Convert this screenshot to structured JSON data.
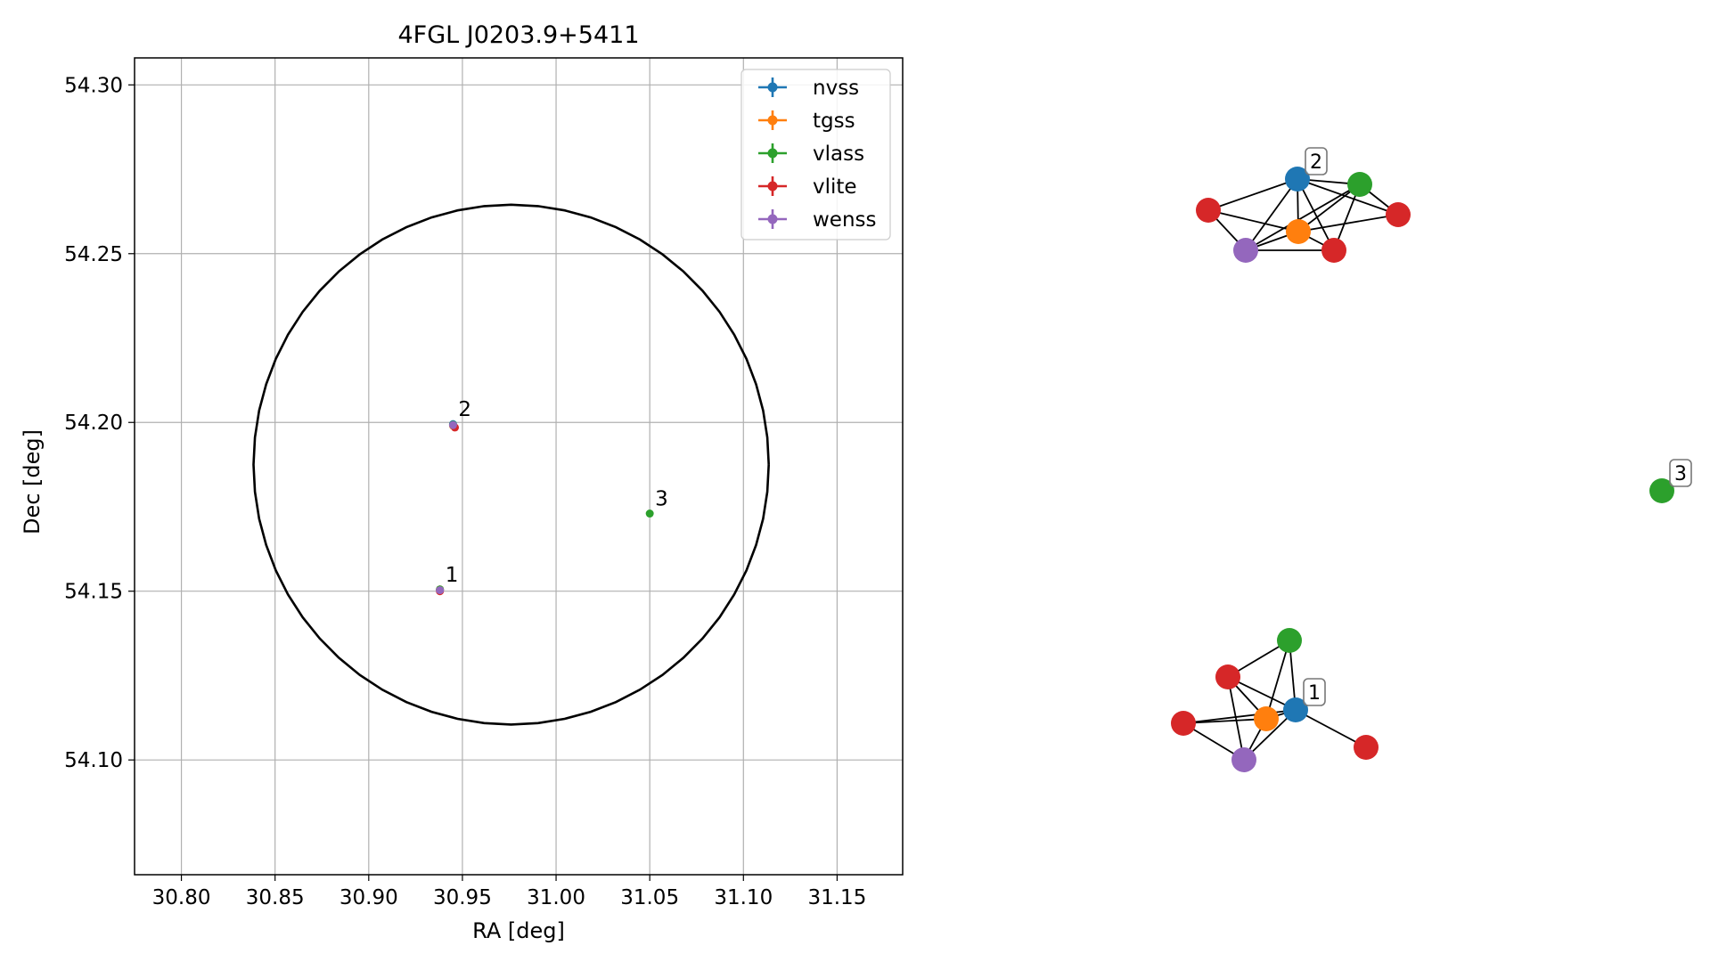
{
  "chart_data": [
    {
      "type": "scatter",
      "title": "4FGL J0203.9+5411",
      "xlabel": "RA [deg]",
      "ylabel": "Dec [deg]",
      "xlim": [
        30.775,
        31.185
      ],
      "ylim": [
        54.066,
        54.308
      ],
      "xticks": [
        "30.80",
        "30.85",
        "30.90",
        "30.95",
        "31.00",
        "31.05",
        "31.10",
        "31.15"
      ],
      "yticks": [
        "54.10",
        "54.15",
        "54.20",
        "54.25",
        "54.30"
      ],
      "grid": true,
      "legend_position": "top-right",
      "ellipse": {
        "center_ra": 30.976,
        "center_dec": 54.1875,
        "radius_ra": 0.1375,
        "radius_dec": 0.077,
        "color": "#000000"
      },
      "series": [
        {
          "name": "nvss",
          "color": "#1f77b4",
          "points": [
            {
              "x": 30.938,
              "y": 54.1505
            },
            {
              "x": 30.945,
              "y": 54.1995
            }
          ]
        },
        {
          "name": "tgss",
          "color": "#ff7f0e",
          "points": [
            {
              "x": 30.938,
              "y": 54.1505
            },
            {
              "x": 30.945,
              "y": 54.199
            }
          ]
        },
        {
          "name": "vlass",
          "color": "#2ca02c",
          "points": [
            {
              "x": 30.938,
              "y": 54.1505
            },
            {
              "x": 30.945,
              "y": 54.1993
            },
            {
              "x": 31.05,
              "y": 54.173
            }
          ]
        },
        {
          "name": "vlite",
          "color": "#d62728",
          "points": [
            {
              "x": 30.938,
              "y": 54.15
            },
            {
              "x": 30.946,
              "y": 54.1985
            }
          ]
        },
        {
          "name": "wenss",
          "color": "#9467bd",
          "points": [
            {
              "x": 30.938,
              "y": 54.1503
            },
            {
              "x": 30.945,
              "y": 54.1992
            }
          ]
        }
      ],
      "annotations": [
        {
          "text": "1",
          "x": 30.938,
          "y": 54.1505
        },
        {
          "text": "2",
          "x": 30.945,
          "y": 54.1995
        },
        {
          "text": "3",
          "x": 31.05,
          "y": 54.173
        }
      ]
    },
    {
      "type": "network",
      "nodes": [
        {
          "id": "g2-nvss",
          "color": "#1f77b4"
        },
        {
          "id": "g2-vlass",
          "color": "#2ca02c"
        },
        {
          "id": "g2-vlite-a",
          "color": "#d62728"
        },
        {
          "id": "g2-vlite-b",
          "color": "#d62728"
        },
        {
          "id": "g2-tgss",
          "color": "#ff7f0e"
        },
        {
          "id": "g2-wenss",
          "color": "#9467bd"
        },
        {
          "id": "g2-vlite-c",
          "color": "#d62728"
        },
        {
          "id": "g3-vlass",
          "color": "#2ca02c"
        },
        {
          "id": "g1-vlass",
          "color": "#2ca02c"
        },
        {
          "id": "g1-vlite-a",
          "color": "#d62728"
        },
        {
          "id": "g1-nvss",
          "color": "#1f77b4"
        },
        {
          "id": "g1-tgss",
          "color": "#ff7f0e"
        },
        {
          "id": "g1-vlite-b",
          "color": "#d62728"
        },
        {
          "id": "g1-wenss",
          "color": "#9467bd"
        },
        {
          "id": "g1-vlite-c",
          "color": "#d62728"
        }
      ],
      "edges": [
        [
          "g2-nvss",
          "g2-vlass"
        ],
        [
          "g2-nvss",
          "g2-vlite-a"
        ],
        [
          "g2-nvss",
          "g2-vlite-b"
        ],
        [
          "g2-nvss",
          "g2-tgss"
        ],
        [
          "g2-nvss",
          "g2-wenss"
        ],
        [
          "g2-nvss",
          "g2-vlite-c"
        ],
        [
          "g2-vlass",
          "g2-vlite-b"
        ],
        [
          "g2-vlass",
          "g2-tgss"
        ],
        [
          "g2-vlass",
          "g2-wenss"
        ],
        [
          "g2-vlass",
          "g2-vlite-c"
        ],
        [
          "g2-vlite-a",
          "g2-tgss"
        ],
        [
          "g2-vlite-a",
          "g2-wenss"
        ],
        [
          "g2-vlite-b",
          "g2-tgss"
        ],
        [
          "g2-tgss",
          "g2-wenss"
        ],
        [
          "g2-tgss",
          "g2-vlite-c"
        ],
        [
          "g2-wenss",
          "g2-vlite-c"
        ],
        [
          "g1-vlass",
          "g1-vlite-a"
        ],
        [
          "g1-vlass",
          "g1-nvss"
        ],
        [
          "g1-vlass",
          "g1-tgss"
        ],
        [
          "g1-vlite-a",
          "g1-nvss"
        ],
        [
          "g1-vlite-a",
          "g1-tgss"
        ],
        [
          "g1-vlite-a",
          "g1-wenss"
        ],
        [
          "g1-nvss",
          "g1-tgss"
        ],
        [
          "g1-nvss",
          "g1-vlite-b"
        ],
        [
          "g1-nvss",
          "g1-wenss"
        ],
        [
          "g1-nvss",
          "g1-vlite-c"
        ],
        [
          "g1-tgss",
          "g1-vlite-b"
        ],
        [
          "g1-tgss",
          "g1-wenss"
        ],
        [
          "g1-vlite-b",
          "g1-wenss"
        ]
      ],
      "labels": [
        {
          "text": "2",
          "node": "g2-nvss"
        },
        {
          "text": "3",
          "node": "g3-vlass"
        },
        {
          "text": "1",
          "node": "g1-nvss"
        }
      ]
    }
  ]
}
